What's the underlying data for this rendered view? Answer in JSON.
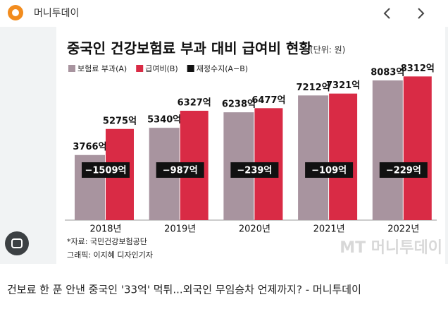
{
  "header": {
    "site": "머니투데이"
  },
  "chart_data": {
    "type": "bar",
    "title": "중국인 건강보험료 부과 대비 급여비 현황",
    "unit": "(단위: 원)",
    "categories": [
      "2018년",
      "2019년",
      "2020년",
      "2021년",
      "2022년"
    ],
    "series": [
      {
        "name": "보험료 부과(A)",
        "color": "#a8949f",
        "values": [
          3766,
          5340,
          6238,
          7212,
          8083
        ],
        "value_labels": [
          "3766억",
          "5340억",
          "6238억",
          "7212억",
          "8083억"
        ]
      },
      {
        "name": "급여비(B)",
        "color": "#d92b45",
        "values": [
          5275,
          6327,
          6477,
          7321,
          8312
        ],
        "value_labels": [
          "5275억",
          "6327억",
          "6477억",
          "7321억",
          "8312억"
        ]
      }
    ],
    "balance": {
      "name": "재정수지(A−B)",
      "color": "#111111",
      "values": [
        -1509,
        -987,
        -239,
        -109,
        -229
      ],
      "value_labels": [
        "−1509억",
        "−987억",
        "−239억",
        "−109억",
        "−229억"
      ]
    },
    "ylim": [
      0,
      10000
    ],
    "source": "*자료: 국민건강보험공단",
    "credit": "그래픽: 이지혜 디자인기자",
    "watermark": "MT 머니투데이"
  },
  "caption": "건보료 한 푼 안낸 중국인 '33억' 먹튀...외국인 무임승차 언제까지? - 머니투데이"
}
